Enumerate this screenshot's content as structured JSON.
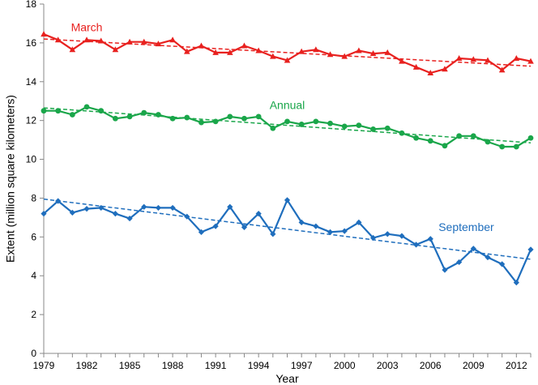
{
  "chart_data": {
    "type": "line",
    "xlabel": "Year",
    "ylabel": "Extent (million square kilometers)",
    "xlim": [
      1979,
      2013
    ],
    "ylim": [
      0,
      18
    ],
    "xticks": [
      1979,
      1982,
      1985,
      1988,
      1991,
      1994,
      1997,
      2000,
      2003,
      2006,
      2009,
      2012
    ],
    "yticks": [
      0,
      2,
      4,
      6,
      8,
      10,
      12,
      14,
      16,
      18
    ],
    "grid": false,
    "x": [
      1979,
      1980,
      1981,
      1982,
      1983,
      1984,
      1985,
      1986,
      1987,
      1988,
      1989,
      1990,
      1991,
      1992,
      1993,
      1994,
      1995,
      1996,
      1997,
      1998,
      1999,
      2000,
      2001,
      2002,
      2003,
      2004,
      2005,
      2006,
      2007,
      2008,
      2009,
      2010,
      2011,
      2012,
      2013
    ],
    "series": [
      {
        "name": "March",
        "color": "#e8211f",
        "marker": "triangle",
        "values": [
          16.45,
          16.15,
          15.65,
          16.15,
          16.1,
          15.65,
          16.05,
          16.05,
          15.95,
          16.15,
          15.55,
          15.85,
          15.5,
          15.5,
          15.85,
          15.6,
          15.3,
          15.1,
          15.55,
          15.65,
          15.4,
          15.3,
          15.6,
          15.45,
          15.5,
          15.05,
          14.75,
          14.45,
          14.65,
          15.2,
          15.15,
          15.1,
          14.6,
          15.2,
          15.05
        ],
        "trend": [
          16.2,
          14.8
        ]
      },
      {
        "name": "Annual",
        "color": "#1aa64a",
        "marker": "circle",
        "values": [
          12.5,
          12.5,
          12.3,
          12.7,
          12.5,
          12.1,
          12.2,
          12.4,
          12.3,
          12.1,
          12.15,
          11.9,
          11.95,
          12.2,
          12.1,
          12.2,
          11.6,
          11.95,
          11.8,
          11.95,
          11.85,
          11.7,
          11.75,
          11.55,
          11.6,
          11.35,
          11.1,
          10.95,
          10.7,
          11.2,
          11.2,
          10.9,
          10.65,
          10.65,
          11.1
        ],
        "trend": [
          12.65,
          10.85
        ]
      },
      {
        "name": "September",
        "color": "#1f6ebd",
        "marker": "diamond",
        "values": [
          7.2,
          7.85,
          7.25,
          7.45,
          7.5,
          7.2,
          6.95,
          7.55,
          7.5,
          7.5,
          7.05,
          6.25,
          6.55,
          7.55,
          6.5,
          7.2,
          6.15,
          7.9,
          6.75,
          6.55,
          6.25,
          6.3,
          6.75,
          5.95,
          6.15,
          6.05,
          5.6,
          5.9,
          4.3,
          4.7,
          5.4,
          4.95,
          4.6,
          3.65,
          5.35
        ],
        "trend": [
          7.95,
          4.85
        ]
      }
    ]
  }
}
